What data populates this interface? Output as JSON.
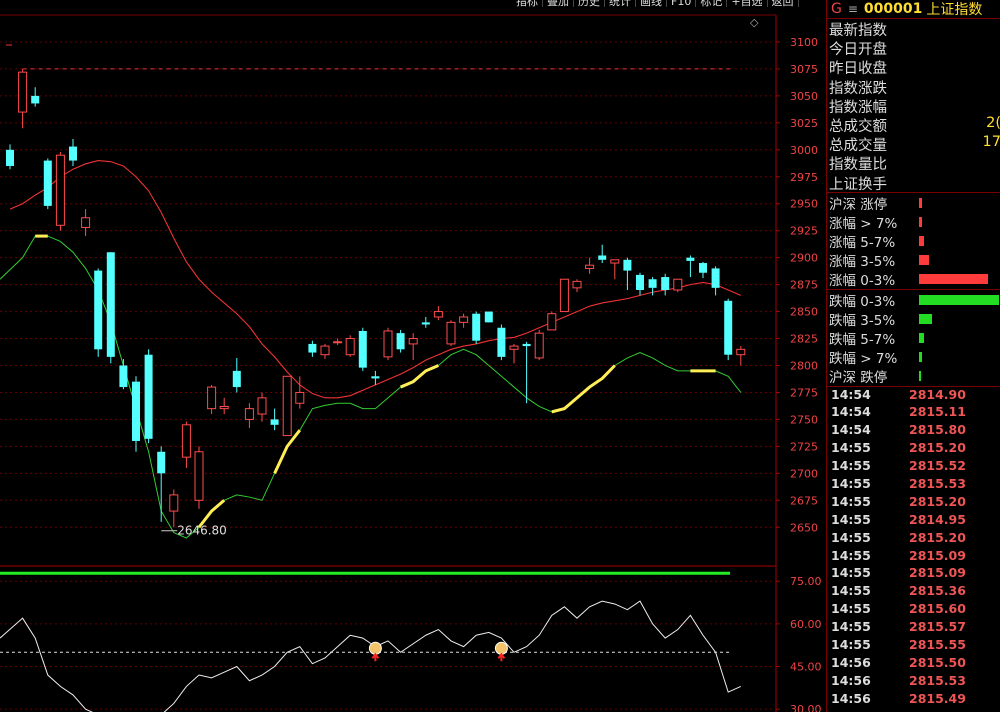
{
  "toolbar": {
    "buttons": [
      "指标",
      "叠加",
      "历史",
      "统计",
      "画线",
      "F10",
      "标记",
      "+自选",
      "返回"
    ]
  },
  "header": {
    "g": "G",
    "menu": "≡",
    "code": "000001",
    "name": "上证指数"
  },
  "info_rows": [
    {
      "label": "最新指数",
      "value": ""
    },
    {
      "label": "今日开盘",
      "value": ""
    },
    {
      "label": "昨日收盘",
      "value": ""
    },
    {
      "label": "指数涨跌",
      "value": ""
    },
    {
      "label": "指数涨幅",
      "value": ""
    },
    {
      "label": "总成交额",
      "value": "2("
    },
    {
      "label": "总成交量",
      "value": "17"
    },
    {
      "label": "指数量比",
      "value": ""
    },
    {
      "label": "上证换手",
      "value": ""
    }
  ],
  "dist_rows": [
    {
      "label": "沪深 涨停",
      "value": 0.04,
      "color": "#ff3b3b"
    },
    {
      "label": "涨幅 > 7%",
      "value": 0.04,
      "color": "#ff3b3b"
    },
    {
      "label": "涨幅 5-7%",
      "value": 0.06,
      "color": "#ff3b3b"
    },
    {
      "label": "涨幅 3-5%",
      "value": 0.13,
      "color": "#ff3b3b"
    },
    {
      "label": "涨幅 0-3%",
      "value": 0.86,
      "color": "#ff3b3b"
    },
    {
      "label": "跌幅 0-3%",
      "value": 1.0,
      "color": "#22dd22"
    },
    {
      "label": "跌幅 3-5%",
      "value": 0.16,
      "color": "#22dd22"
    },
    {
      "label": "跌幅 5-7%",
      "value": 0.06,
      "color": "#22dd22"
    },
    {
      "label": "跌幅 > 7%",
      "value": 0.04,
      "color": "#22dd22"
    },
    {
      "label": "沪深 跌停",
      "value": 0.01,
      "color": "#22dd22"
    }
  ],
  "trades": [
    {
      "time": "14:54",
      "price": "2814.90"
    },
    {
      "time": "14:54",
      "price": "2815.11"
    },
    {
      "time": "14:54",
      "price": "2815.80"
    },
    {
      "time": "14:55",
      "price": "2815.20"
    },
    {
      "time": "14:55",
      "price": "2815.52"
    },
    {
      "time": "14:55",
      "price": "2815.53"
    },
    {
      "time": "14:55",
      "price": "2815.20"
    },
    {
      "time": "14:55",
      "price": "2814.95"
    },
    {
      "time": "14:55",
      "price": "2815.20"
    },
    {
      "time": "14:55",
      "price": "2815.09"
    },
    {
      "time": "14:55",
      "price": "2815.09"
    },
    {
      "time": "14:55",
      "price": "2815.36"
    },
    {
      "time": "14:55",
      "price": "2815.60"
    },
    {
      "time": "14:55",
      "price": "2815.57"
    },
    {
      "time": "14:55",
      "price": "2815.55"
    },
    {
      "time": "14:56",
      "price": "2815.50"
    },
    {
      "time": "14:56",
      "price": "2815.53"
    },
    {
      "time": "14:56",
      "price": "2815.49"
    }
  ],
  "chart_data": {
    "type": "candlestick",
    "y_ticks": [
      3100,
      3075,
      3050,
      3025,
      3000,
      2975,
      2950,
      2925,
      2900,
      2875,
      2850,
      2825,
      2800,
      2775,
      2750,
      2725,
      2700,
      2675,
      2650
    ],
    "ylim": [
      2615,
      3125
    ],
    "low_annotation": "2646.80",
    "candles": [
      [
        3000,
        2985,
        3005,
        2982
      ],
      [
        3035,
        3072,
        3075,
        3020
      ],
      [
        3050,
        3043,
        3058,
        3040
      ],
      [
        2990,
        2948,
        2992,
        2945
      ],
      [
        2930,
        2995,
        2998,
        2925
      ],
      [
        3003,
        2990,
        3010,
        2985
      ],
      [
        2928,
        2937,
        2945,
        2920
      ],
      [
        2888,
        2815,
        2890,
        2808
      ],
      [
        2905,
        2808,
        2905,
        2802
      ],
      [
        2800,
        2780,
        2806,
        2778
      ],
      [
        2785,
        2730,
        2790,
        2720
      ],
      [
        2810,
        2732,
        2815,
        2728
      ],
      [
        2720,
        2700,
        2725,
        2655
      ],
      [
        2665,
        2680,
        2685,
        2650
      ],
      [
        2715,
        2745,
        2748,
        2705
      ],
      [
        2675,
        2720,
        2725,
        2667
      ],
      [
        2760,
        2780,
        2782,
        2755
      ],
      [
        2760,
        2762,
        2770,
        2755
      ],
      [
        2795,
        2780,
        2807,
        2775
      ],
      [
        2750,
        2760,
        2765,
        2742
      ],
      [
        2755,
        2770,
        2775,
        2748
      ],
      [
        2750,
        2745,
        2760,
        2740
      ],
      [
        2735,
        2790,
        2790,
        2735
      ],
      [
        2765,
        2775,
        2790,
        2760
      ],
      [
        2820,
        2812,
        2823,
        2808
      ],
      [
        2810,
        2818,
        2820,
        2806
      ],
      [
        2822,
        2822,
        2825,
        2819
      ],
      [
        2810,
        2825,
        2828,
        2808
      ],
      [
        2832,
        2798,
        2835,
        2795
      ],
      [
        2790,
        2788,
        2795,
        2782
      ],
      [
        2808,
        2832,
        2835,
        2805
      ],
      [
        2830,
        2815,
        2833,
        2812
      ],
      [
        2820,
        2825,
        2830,
        2805
      ],
      [
        2840,
        2838,
        2845,
        2835
      ],
      [
        2845,
        2850,
        2855,
        2842
      ],
      [
        2820,
        2840,
        2842,
        2818
      ],
      [
        2840,
        2845,
        2848,
        2835
      ],
      [
        2848,
        2823,
        2850,
        2820
      ],
      [
        2850,
        2840,
        2850,
        2840
      ],
      [
        2835,
        2808,
        2838,
        2805
      ],
      [
        2815,
        2818,
        2820,
        2802
      ],
      [
        2820,
        2818,
        2822,
        2765
      ],
      [
        2807,
        2830,
        2833,
        2805
      ],
      [
        2833,
        2848,
        2850,
        2833
      ],
      [
        2850,
        2880,
        2880,
        2850
      ],
      [
        2872,
        2878,
        2880,
        2868
      ],
      [
        2890,
        2893,
        2900,
        2885
      ],
      [
        2902,
        2898,
        2912,
        2895
      ],
      [
        2895,
        2898,
        2898,
        2880
      ],
      [
        2898,
        2888,
        2900,
        2870
      ],
      [
        2884,
        2870,
        2886,
        2865
      ],
      [
        2880,
        2872,
        2882,
        2865
      ],
      [
        2882,
        2870,
        2885,
        2865
      ],
      [
        2870,
        2880,
        2880,
        2868
      ],
      [
        2900,
        2897,
        2902,
        2882
      ],
      [
        2895,
        2886,
        2896,
        2881
      ],
      [
        2890,
        2872,
        2892,
        2865
      ],
      [
        2860,
        2810,
        2862,
        2805
      ],
      [
        2810,
        2815,
        2818,
        2800
      ]
    ],
    "ma_red": [
      2945,
      2950,
      2958,
      2965,
      2975,
      2982,
      2987,
      2990,
      2989,
      2985,
      2975,
      2962,
      2942,
      2918,
      2896,
      2880,
      2868,
      2858,
      2848,
      2836,
      2820,
      2808,
      2794,
      2782,
      2774,
      2770,
      2770,
      2772,
      2777,
      2782,
      2787,
      2792,
      2798,
      2805,
      2810,
      2815,
      2818,
      2820,
      2823,
      2825,
      2826,
      2830,
      2835,
      2840,
      2845,
      2850,
      2855,
      2858,
      2860,
      2862,
      2865,
      2868,
      2870,
      2872,
      2875,
      2877,
      2875,
      2870,
      2865
    ],
    "ma_green": [
      2880,
      2900,
      2920,
      2920,
      2915,
      2905,
      2890,
      2870,
      2840,
      2800,
      2760,
      2720,
      2665,
      2645,
      2640,
      2650,
      2665,
      2675,
      2680,
      2678,
      2675,
      2700,
      2725,
      2740,
      2760,
      2763,
      2765,
      2765,
      2760,
      2760,
      2770,
      2780,
      2785,
      2795,
      2800,
      2810,
      2815,
      2810,
      2800,
      2790,
      2780,
      2770,
      2762,
      2757,
      2760,
      2770,
      2780,
      2788,
      2800,
      2807,
      2812,
      2807,
      2800,
      2795,
      2795,
      2795,
      2795,
      2790,
      2775
    ],
    "ma_green_yellow_segments": [
      [
        2,
        3
      ],
      [
        15,
        17
      ],
      [
        21,
        23
      ],
      [
        31,
        34
      ],
      [
        43,
        48
      ],
      [
        54,
        56
      ]
    ],
    "osc_y_ticks": [
      75,
      60,
      45,
      30
    ],
    "osc_ylim": [
      29,
      80
    ],
    "osc_flat_line": 77.8,
    "osc_dashed": 50,
    "osc": [
      55,
      62,
      55,
      42,
      38,
      35,
      30,
      28,
      24,
      20,
      18,
      24,
      28,
      32,
      38,
      42,
      41,
      43,
      45,
      40,
      42,
      45,
      50,
      52,
      46,
      48,
      52,
      56,
      55,
      52,
      54,
      50,
      53,
      56,
      58,
      54,
      52,
      56,
      57,
      55,
      50,
      52,
      56,
      63,
      66,
      62,
      66,
      68,
      67,
      65,
      68,
      60,
      55,
      58,
      63,
      56,
      50,
      36,
      38
    ]
  }
}
